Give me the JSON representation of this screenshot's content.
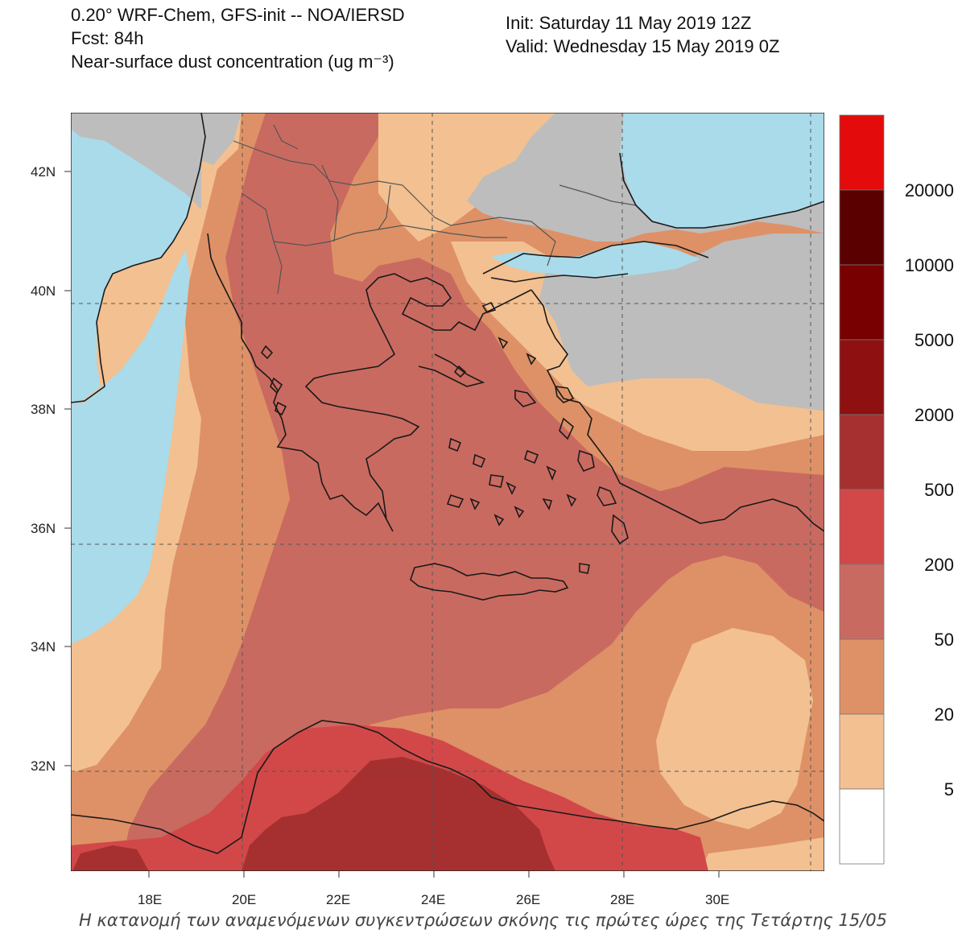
{
  "header": {
    "line1": "0.20° WRF-Chem, GFS-init -- NOA/IERSD",
    "line2": "Fcst: 84h",
    "line3": "Near-surface dust concentration (ug m⁻³)",
    "init": "Init: Saturday 11 May 2019  12Z",
    "valid": "Valid: Wednesday 15 May 2019  0Z"
  },
  "axes": {
    "lat_labels": [
      "42N",
      "40N",
      "38N",
      "36N",
      "34N",
      "32N"
    ],
    "lon_labels": [
      "18E",
      "20E",
      "22E",
      "24E",
      "26E",
      "28E",
      "30E"
    ]
  },
  "legend": {
    "labels": [
      "20000",
      "10000",
      "5000",
      "2000",
      "500",
      "200",
      "50",
      "20",
      "5"
    ],
    "colors": [
      "#e30b0b",
      "#5a0000",
      "#780000",
      "#8e1010",
      "#a63030",
      "#d24848",
      "#c96a60",
      "#de9166",
      "#f3c091",
      "#ffffff"
    ]
  },
  "colors": {
    "sea": "#a9dbea",
    "land_no_data": "#bdbdbd",
    "coast": "#1a1a1a"
  },
  "caption": "Η κατανομή των αναμενόμενων συγκεντρώσεων σκόνης τις πρώτες ώρες της Τετάρτης 15/05"
}
